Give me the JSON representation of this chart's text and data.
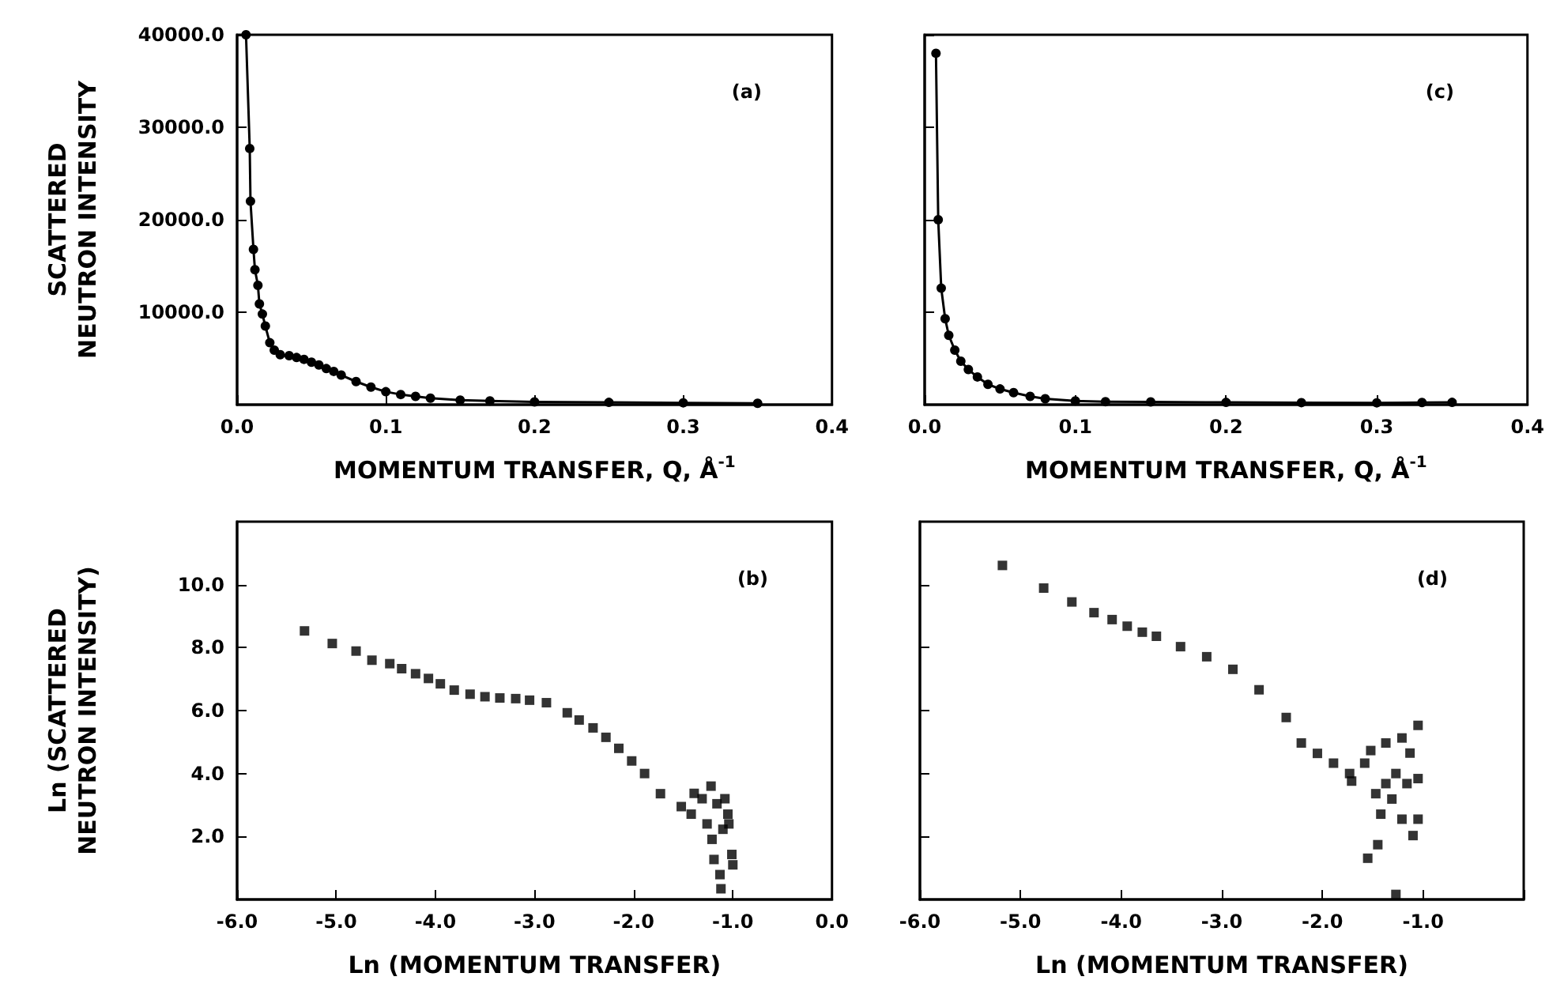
{
  "chart_data": [
    {
      "type": "line",
      "marker": "circle",
      "xlabel": "MOMENTUM TRANSFER, Q, Å$^{-1}$",
      "ylabel": "SCATTERED\nNEUTRON INTENSITY",
      "annotations": [
        "(a)"
      ],
      "xlim": [
        0,
        0.4
      ],
      "xticks": [
        {
          "value": 0,
          "label": "0.0"
        },
        {
          "value": 0.1,
          "label": "0.1"
        },
        {
          "value": 0.2,
          "label": "0.2"
        },
        {
          "value": 0.3,
          "label": "0.3"
        },
        {
          "value": 0.4,
          "label": "0.4"
        }
      ],
      "ylim": [
        0,
        40000
      ],
      "yticks": [
        {
          "value": 10000,
          "label": "10000.0"
        },
        {
          "value": 20000,
          "label": "20000.0"
        },
        {
          "value": 30000,
          "label": "30000.0"
        },
        {
          "value": 40000,
          "label": "40000.0"
        }
      ],
      "series": [
        {
          "color": "#000000",
          "x": [
            0.006,
            0.0085,
            0.009,
            0.011,
            0.012,
            0.014,
            0.015,
            0.017,
            0.019,
            0.022,
            0.025,
            0.029,
            0.035,
            0.04,
            0.045,
            0.05,
            0.055,
            0.06,
            0.065,
            0.07,
            0.08,
            0.09,
            0.1,
            0.11,
            0.12,
            0.13,
            0.15,
            0.17,
            0.2,
            0.25,
            0.3,
            0.35
          ],
          "values": [
            40000,
            27700,
            22000,
            16800,
            14600,
            12900,
            10900,
            9800,
            8500,
            6700,
            5900,
            5400,
            5300,
            5100,
            4900,
            4600,
            4300,
            3900,
            3600,
            3200,
            2500,
            1900,
            1400,
            1100,
            900,
            700,
            500,
            400,
            300,
            250,
            200,
            150
          ]
        }
      ]
    },
    {
      "type": "line",
      "marker": "circle",
      "xlabel": "MOMENTUM TRANSFER, Q, Å$^{-1}$",
      "annotations": [
        "(c)"
      ],
      "tick_labels": "x",
      "xlim": [
        0,
        0.4
      ],
      "xticks": [
        {
          "value": 0,
          "label": "0.0"
        },
        {
          "value": 0.1,
          "label": "0.1"
        },
        {
          "value": 0.2,
          "label": "0.2"
        },
        {
          "value": 0.3,
          "label": "0.3"
        },
        {
          "value": 0.4,
          "label": "0.4"
        }
      ],
      "ylim": [
        0,
        40000
      ],
      "yticks": [
        10000,
        20000,
        30000,
        40000
      ],
      "series": [
        {
          "color": "#000000",
          "x": [
            0.0075,
            0.009,
            0.011,
            0.0136,
            0.016,
            0.02,
            0.024,
            0.029,
            0.035,
            0.042,
            0.05,
            0.059,
            0.07,
            0.08,
            0.1,
            0.12,
            0.15,
            0.2,
            0.25,
            0.3,
            0.33,
            0.35
          ],
          "values": [
            38000,
            20000,
            12600,
            9300,
            7500,
            5900,
            4700,
            3800,
            3000,
            2200,
            1700,
            1300,
            900,
            640,
            400,
            330,
            300,
            250,
            220,
            200,
            230,
            250
          ]
        }
      ]
    },
    {
      "type": "scatter",
      "marker": "square",
      "xlabel": "Ln (MOMENTUM TRANSFER)",
      "ylabel": "Ln (SCATTERED\nNEUTRON INTENSITY)",
      "annotations": [
        "(b)"
      ],
      "xlim": [
        -6,
        0
      ],
      "xticks": [
        {
          "value": -6,
          "label": "-6.0"
        },
        {
          "value": -5,
          "label": "-5.0"
        },
        {
          "value": -4,
          "label": "-4.0"
        },
        {
          "value": -3,
          "label": "-3.0"
        },
        {
          "value": -2,
          "label": "-2.0"
        },
        {
          "value": -1,
          "label": "-1.0"
        },
        {
          "value": 0,
          "label": "0.0"
        }
      ],
      "ylim": [
        0,
        12
      ],
      "yticks": [
        {
          "value": 2,
          "label": "2.0"
        },
        {
          "value": 4,
          "label": "4.0"
        },
        {
          "value": 6,
          "label": "6.0"
        },
        {
          "value": 8,
          "label": "8.0"
        },
        {
          "value": 10,
          "label": "10.0"
        }
      ],
      "series": [
        {
          "color": "#000000",
          "x": [
            -5.32,
            -5.04,
            -4.8,
            -4.64,
            -4.46,
            -4.34,
            -4.2,
            -4.07,
            -3.95,
            -3.81,
            -3.65,
            -3.5,
            -3.35,
            -3.19,
            -3.05,
            -2.88,
            -2.67,
            -2.55,
            -2.41,
            -2.28,
            -2.15,
            -2.02,
            -1.89,
            -1.73,
            -1.52,
            -1.39,
            -1.22,
            -1.16,
            -1.05,
            -1.21,
            -1.26,
            -1.19,
            -1.13,
            -1.12,
            -1.0,
            -1.01,
            -1.1,
            -1.42,
            -1.31,
            -1.08,
            -1.04
          ],
          "values": [
            8.53,
            8.13,
            7.89,
            7.6,
            7.49,
            7.33,
            7.17,
            7.02,
            6.85,
            6.65,
            6.52,
            6.44,
            6.4,
            6.38,
            6.33,
            6.25,
            5.93,
            5.7,
            5.45,
            5.15,
            4.8,
            4.4,
            4.0,
            3.36,
            2.95,
            3.37,
            3.6,
            3.04,
            2.71,
            1.91,
            2.4,
            1.27,
            0.79,
            0.34,
            1.1,
            1.43,
            2.23,
            2.71,
            3.2,
            3.2,
            2.4
          ]
        }
      ]
    },
    {
      "type": "scatter",
      "marker": "square",
      "xlabel": "Ln (MOMENTUM TRANSFER)",
      "annotations": [
        "(d)"
      ],
      "tick_labels": "x",
      "xlim": [
        -6,
        0
      ],
      "xticks": [
        {
          "value": -6,
          "label": "-6.0"
        },
        {
          "value": -5,
          "label": "-5.0"
        },
        {
          "value": -4,
          "label": "-4.0"
        },
        {
          "value": -3,
          "label": "-3.0"
        },
        {
          "value": -2,
          "label": "-2.0"
        },
        {
          "value": -1,
          "label": "-1.0"
        },
        {
          "value": 0,
          "label": null
        }
      ],
      "ylim": [
        0,
        12
      ],
      "yticks": [
        2,
        4,
        6,
        8,
        10
      ],
      "series": [
        {
          "color": "#000000",
          "x": [
            -5.18,
            -4.77,
            -4.49,
            -4.27,
            -4.09,
            -3.94,
            -3.79,
            -3.65,
            -3.41,
            -3.15,
            -2.89,
            -2.63,
            -2.36,
            -2.21,
            -2.05,
            -1.89,
            -1.73,
            -1.58,
            -1.71,
            -1.52,
            -1.37,
            -1.21,
            -1.05,
            -1.47,
            -1.31,
            -1.16,
            -1.05,
            -1.42,
            -1.21,
            -1.05,
            -1.1,
            -1.45,
            -1.55,
            -1.27,
            -1.27,
            -1.37,
            -1.13
          ],
          "values": [
            10.61,
            9.89,
            9.45,
            9.11,
            8.89,
            8.68,
            8.49,
            8.36,
            8.03,
            7.71,
            7.31,
            6.66,
            5.78,
            4.97,
            4.64,
            4.33,
            4.0,
            4.33,
            3.76,
            4.73,
            4.97,
            5.13,
            5.53,
            3.36,
            3.19,
            3.68,
            3.84,
            2.71,
            2.55,
            2.55,
            2.03,
            1.74,
            1.31,
            0.16,
            4.0,
            3.68,
            4.65
          ]
        }
      ]
    }
  ]
}
